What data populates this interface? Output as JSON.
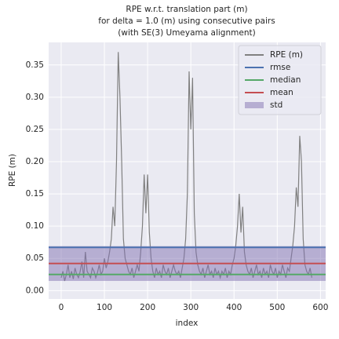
{
  "chart_data": {
    "type": "line",
    "title": [
      "RPE w.r.t. translation part (m)",
      "for delta = 1.0 (m) using consecutive pairs",
      "(with SE(3) Umeyama alignment)"
    ],
    "x_label": "index",
    "y_label": "RPE (m)",
    "xlim": [
      -29,
      612
    ],
    "xticks": [
      0,
      100,
      200,
      300,
      400,
      500,
      600
    ],
    "ylim": [
      -0.013,
      0.385
    ],
    "yticks": [
      {
        "value": 0,
        "label": "0.00"
      },
      0.05,
      {
        "value": 0.1,
        "label": "0.10"
      },
      0.15,
      {
        "value": 0.2,
        "label": "0.20"
      },
      0.25,
      {
        "value": 0.3,
        "label": "0.30"
      },
      0.35
    ],
    "grid": true,
    "legend": "upper right",
    "x": [
      0,
      4,
      8,
      12,
      16,
      20,
      24,
      28,
      32,
      36,
      40,
      44,
      48,
      52,
      56,
      60,
      64,
      68,
      72,
      76,
      80,
      84,
      88,
      92,
      96,
      100,
      104,
      108,
      112,
      116,
      120,
      124,
      128,
      132,
      136,
      140,
      144,
      148,
      152,
      156,
      160,
      164,
      168,
      172,
      176,
      180,
      184,
      188,
      192,
      196,
      200,
      204,
      208,
      212,
      216,
      220,
      224,
      228,
      232,
      236,
      240,
      244,
      248,
      252,
      256,
      260,
      264,
      268,
      272,
      276,
      280,
      284,
      288,
      292,
      296,
      300,
      304,
      308,
      312,
      316,
      320,
      324,
      328,
      332,
      336,
      340,
      344,
      348,
      352,
      356,
      360,
      364,
      368,
      372,
      376,
      380,
      384,
      388,
      392,
      396,
      400,
      404,
      408,
      412,
      416,
      420,
      424,
      428,
      432,
      436,
      440,
      444,
      448,
      452,
      456,
      460,
      464,
      468,
      472,
      476,
      480,
      484,
      488,
      492,
      496,
      500,
      504,
      508,
      512,
      516,
      520,
      524,
      528,
      532,
      536,
      540,
      544,
      548,
      552,
      556,
      560,
      564,
      568,
      572,
      576,
      580
    ],
    "series": [
      {
        "name": "RPE (m)",
        "color": "#808080",
        "values": [
          0.02,
          0.03,
          0.015,
          0.025,
          0.04,
          0.02,
          0.03,
          0.018,
          0.035,
          0.025,
          0.02,
          0.03,
          0.045,
          0.02,
          0.06,
          0.03,
          0.025,
          0.02,
          0.035,
          0.03,
          0.02,
          0.028,
          0.04,
          0.025,
          0.03,
          0.05,
          0.035,
          0.045,
          0.06,
          0.08,
          0.13,
          0.1,
          0.2,
          0.37,
          0.3,
          0.2,
          0.08,
          0.05,
          0.04,
          0.03,
          0.025,
          0.035,
          0.02,
          0.03,
          0.04,
          0.03,
          0.06,
          0.1,
          0.18,
          0.12,
          0.18,
          0.09,
          0.05,
          0.03,
          0.02,
          0.035,
          0.025,
          0.03,
          0.02,
          0.04,
          0.03,
          0.025,
          0.035,
          0.02,
          0.03,
          0.04,
          0.03,
          0.025,
          0.03,
          0.02,
          0.035,
          0.05,
          0.08,
          0.15,
          0.34,
          0.25,
          0.33,
          0.12,
          0.06,
          0.04,
          0.03,
          0.025,
          0.035,
          0.02,
          0.03,
          0.04,
          0.025,
          0.03,
          0.02,
          0.035,
          0.025,
          0.03,
          0.02,
          0.03,
          0.025,
          0.035,
          0.02,
          0.03,
          0.025,
          0.04,
          0.05,
          0.07,
          0.1,
          0.15,
          0.09,
          0.13,
          0.06,
          0.04,
          0.03,
          0.025,
          0.035,
          0.02,
          0.03,
          0.04,
          0.025,
          0.03,
          0.02,
          0.035,
          0.025,
          0.03,
          0.02,
          0.04,
          0.03,
          0.025,
          0.035,
          0.02,
          0.03,
          0.025,
          0.04,
          0.03,
          0.02,
          0.035,
          0.03,
          0.05,
          0.07,
          0.1,
          0.16,
          0.13,
          0.24,
          0.2,
          0.08,
          0.04,
          0.03,
          0.025,
          0.035,
          0.02
        ]
      }
    ],
    "stats": [
      {
        "name": "rmse",
        "color": "#4c72b0",
        "value": 0.067
      },
      {
        "name": "median",
        "color": "#55a868",
        "value": 0.025
      },
      {
        "name": "mean",
        "color": "#c44e52",
        "value": 0.042
      },
      {
        "name": "std",
        "color": "#8172b2",
        "value": 0.027
      }
    ]
  }
}
